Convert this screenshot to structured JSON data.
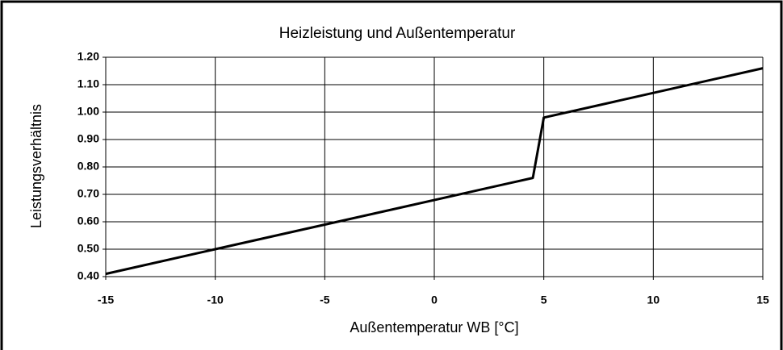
{
  "chart_data": {
    "type": "line",
    "title": "Heizleistung und Außentemperatur",
    "xlabel": "Außentemperatur WB [°C]",
    "ylabel": "Leistungsverhältnis",
    "x": [
      -15,
      -10,
      4.5,
      5,
      15
    ],
    "series": [
      {
        "color": "#000000",
        "values": [
          0.41,
          0.5,
          0.76,
          0.98,
          1.16
        ]
      }
    ],
    "xlim": [
      -15,
      15
    ],
    "xticks": [
      -15,
      -10,
      -5,
      0,
      5,
      10,
      15
    ],
    "ylim": [
      0.4,
      1.2
    ],
    "yticks": [
      {
        "value": 0.4,
        "label": "0.40"
      },
      {
        "value": 0.5,
        "label": "0.50"
      },
      {
        "value": 0.6,
        "label": "0.60"
      },
      {
        "value": 0.7,
        "label": "0.70"
      },
      {
        "value": 0.8,
        "label": "0.80"
      },
      {
        "value": 0.9,
        "label": "0.90"
      },
      {
        "value": 1.0,
        "label": "1.00"
      },
      {
        "value": 1.1,
        "label": "1.10"
      },
      {
        "value": 1.2,
        "label": "1.20"
      }
    ],
    "grid": true
  }
}
